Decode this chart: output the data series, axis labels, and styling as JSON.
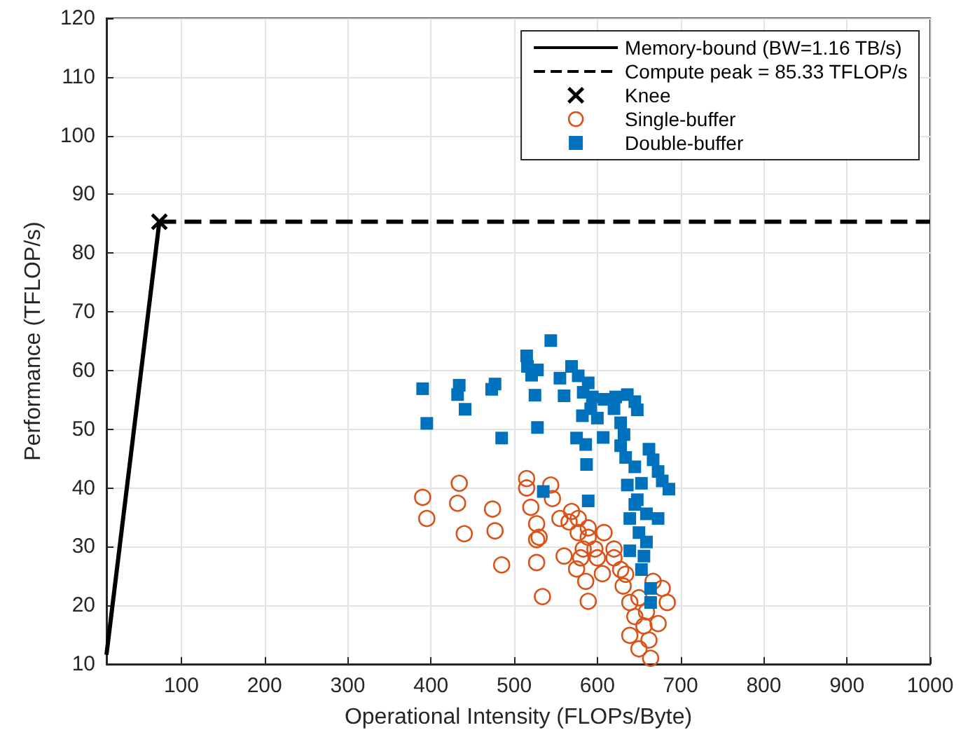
{
  "chart_data": {
    "type": "scatter",
    "xlabel": "Operational Intensity (FLOPs/Byte)",
    "ylabel": "Performance (TFLOP/s)",
    "xlim": [
      10,
      1000
    ],
    "xticks": [
      100,
      200,
      300,
      400,
      500,
      600,
      700,
      800,
      900,
      1000
    ],
    "ylim": [
      10,
      120
    ],
    "yticks": [
      10,
      20,
      30,
      40,
      50,
      60,
      70,
      80,
      90,
      100,
      110,
      120
    ],
    "grid": true,
    "legend": "top right",
    "series": [
      {
        "name": "Memory-bound (BW=1.16 TB/s)",
        "type": "line",
        "color": "#000000",
        "line_style": "solid",
        "marker": "none",
        "x": [
          10,
          73.56
        ],
        "values": [
          11.6,
          85.33
        ]
      },
      {
        "name": "Compute peak = 85.33 TFLOP/s",
        "type": "line",
        "color": "#000000",
        "line_style": "dashed",
        "marker": "none",
        "x": [
          73.56,
          1000
        ],
        "values": [
          85.33,
          85.33
        ]
      },
      {
        "name": "Knee",
        "color": "#000000",
        "marker": "cross",
        "x": [
          73.56
        ],
        "values": [
          85.33
        ]
      },
      {
        "name": "Single-buffer",
        "color": "#d95319",
        "marker": "circle",
        "x": [
          434,
          390,
          432,
          395,
          440,
          474,
          477,
          485,
          515,
          515,
          544,
          546,
          520,
          527,
          527,
          530,
          527,
          534,
          555,
          569,
          566,
          577,
          577,
          589,
          589,
          608,
          560,
          583,
          580,
          597,
          600,
          575,
          606,
          586,
          589,
          620,
          620,
          628,
          631,
          639,
          645,
          639,
          650,
          664,
          662,
          673,
          684,
          678,
          659,
          667,
          650,
          656,
          634
        ],
        "values": [
          40.8,
          38.4,
          37.4,
          34.8,
          32.2,
          36.4,
          32.7,
          26.9,
          41.6,
          40.0,
          40.5,
          38.2,
          36.7,
          33.9,
          31.2,
          31.6,
          27.3,
          21.5,
          34.8,
          36.0,
          34.2,
          34.8,
          32.4,
          33.2,
          31.6,
          32.4,
          28.4,
          29.6,
          28.1,
          29.6,
          28.1,
          26.2,
          25.4,
          24.1,
          20.7,
          29.6,
          28.1,
          26.1,
          23.3,
          20.5,
          18.1,
          14.9,
          12.6,
          11.0,
          14.1,
          16.9,
          20.5,
          22.9,
          18.9,
          24.1,
          21.3,
          16.5,
          25.3
        ]
      },
      {
        "name": "Double-buffer",
        "color": "#0072bd",
        "marker": "square",
        "x": [
          544,
          515,
          516,
          528,
          521,
          390,
          434,
          432,
          477,
          473,
          441,
          395,
          525,
          528,
          485,
          569,
          555,
          577,
          589,
          560,
          583,
          594,
          608,
          622,
          636,
          645,
          648,
          620,
          592,
          582,
          600,
          628,
          632,
          607,
          575,
          586,
          628,
          634,
          662,
          667,
          645,
          673,
          678,
          686,
          653,
          636,
          587,
          535,
          589,
          648,
          645,
          639,
          659,
          673,
          650,
          659,
          639,
          656,
          653,
          664,
          664
        ],
        "values": [
          65.1,
          62.5,
          60.7,
          60.1,
          59.2,
          56.9,
          57.5,
          55.9,
          57.7,
          56.8,
          53.4,
          51.0,
          55.8,
          50.3,
          48.5,
          60.7,
          58.7,
          59.1,
          57.9,
          55.7,
          56.3,
          55.5,
          55.1,
          55.5,
          55.9,
          54.7,
          53.3,
          53.5,
          53.5,
          52.3,
          51.9,
          51.1,
          49.1,
          48.6,
          48.5,
          47.4,
          47.2,
          45.2,
          46.6,
          44.8,
          43.6,
          42.8,
          41.2,
          39.8,
          40.8,
          40.5,
          44.0,
          39.4,
          37.8,
          38.0,
          37.2,
          34.8,
          35.6,
          34.8,
          32.4,
          30.8,
          29.3,
          28.4,
          26.1,
          22.9,
          20.5
        ]
      }
    ]
  }
}
